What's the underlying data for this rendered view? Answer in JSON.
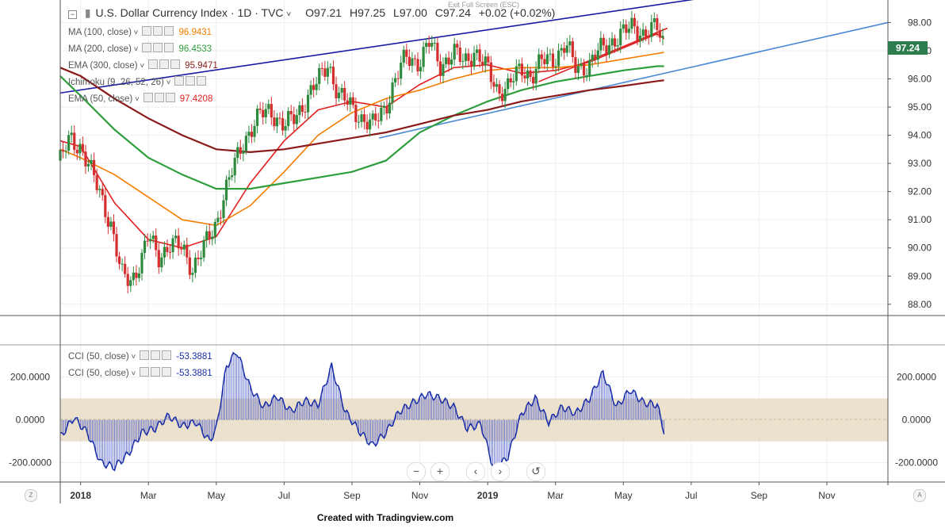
{
  "header": {
    "title": "U.S. Dollar Currency Index · 1D · TVC",
    "open": "O97.21",
    "high": "H97.25",
    "low": "L97.00",
    "close": "C97.24",
    "change": "+0.02 (+0.02%)",
    "exit_full_screen": "Exit Full Screen (ESC)"
  },
  "indicators": [
    {
      "name": "MA (100, close)",
      "value": "96.9431",
      "color": "#f57c00"
    },
    {
      "name": "MA (200, close)",
      "value": "96.4533",
      "color": "#2e9e3e"
    },
    {
      "name": "EMA (300, close)",
      "value": "95.9471",
      "color": "#8b1a1a"
    },
    {
      "name": "Ichimoku (9, 26, 52, 26)",
      "value": "",
      "color": "#2196f3"
    },
    {
      "name": "EMA (50, close)",
      "value": "97.4208",
      "color": "#e02020"
    }
  ],
  "cci_legend": [
    {
      "name": "CCI (50, close)",
      "value": "-53.3881",
      "color": "#1a2ea8"
    },
    {
      "name": "CCI (50, close)",
      "value": "-53.3881",
      "color": "#1a2ea8"
    }
  ],
  "price_badge": "97.24",
  "footer_text": "Created with Tradingview.com",
  "controls": {
    "zoom_out": "−",
    "zoom_in": "+",
    "prev": "‹",
    "next": "›",
    "reset": "↺"
  },
  "corners": {
    "left": "Z",
    "right": "A"
  },
  "chart_data": [
    {
      "type": "line",
      "title": "U.S. Dollar Currency Index",
      "x_ticks": [
        "2018",
        "Mar",
        "May",
        "Jul",
        "Sep",
        "Nov",
        "2019",
        "Mar",
        "May",
        "Jul",
        "Sep",
        "Nov"
      ],
      "y_ticks": [
        "98.00",
        "97.00",
        "96.00",
        "95.00",
        "94.00",
        "93.00",
        "92.00",
        "91.00",
        "90.00",
        "89.00",
        "88.00"
      ],
      "ylim": [
        87.6,
        98.8
      ],
      "x_unit": "months since Dec 2017",
      "xlim": [
        -0.6,
        23.8
      ],
      "current_price": 97.24,
      "series": [
        {
          "name": "Price",
          "color": "#555555",
          "x": [
            -0.6,
            -0.3,
            0,
            0.3,
            0.6,
            0.9,
            1.2,
            1.5,
            1.8,
            2,
            2.3,
            2.6,
            3,
            3.3,
            3.6,
            4,
            4.2,
            4.5,
            4.8,
            5,
            5.3,
            5.6,
            6,
            6.3,
            6.6,
            7,
            7.3,
            7.6,
            8,
            8.3,
            8.6,
            9,
            9.3,
            9.6,
            10,
            10.3,
            10.6,
            11,
            11.3,
            11.6,
            12,
            12.3,
            12.6,
            13,
            13.3,
            13.6,
            14,
            14.3,
            14.6,
            15,
            15.3,
            15.6,
            16,
            16.3,
            16.6,
            17,
            17.2
          ],
          "values": [
            93.1,
            93.9,
            93.6,
            92.7,
            91.9,
            90.8,
            89.0,
            88.9,
            89.6,
            90.4,
            89.7,
            90.1,
            90.0,
            89.3,
            89.9,
            90.9,
            91.8,
            92.8,
            93.8,
            94.2,
            94.7,
            94.9,
            94.3,
            94.6,
            95.2,
            95.9,
            96.6,
            95.4,
            95.0,
            94.6,
            94.3,
            95.1,
            96.0,
            96.8,
            96.6,
            97.3,
            96.5,
            96.9,
            96.6,
            97.0,
            96.3,
            95.6,
            95.7,
            96.4,
            96.1,
            96.6,
            96.8,
            97.2,
            96.4,
            96.5,
            97.0,
            97.3,
            97.6,
            97.9,
            97.6,
            97.8,
            97.24
          ]
        },
        {
          "name": "EMA (50, close)",
          "color": "#e02020",
          "x": [
            -0.6,
            0,
            1,
            2,
            3,
            4,
            5,
            6,
            7,
            8,
            9,
            10,
            11,
            12,
            13,
            14,
            15,
            16,
            17,
            17.2
          ],
          "values": [
            93.8,
            93.6,
            91.6,
            90.3,
            90.0,
            90.4,
            92.3,
            93.8,
            94.9,
            95.2,
            95.0,
            95.8,
            96.4,
            96.5,
            96.2,
            96.3,
            96.6,
            97.1,
            97.6,
            97.42
          ]
        },
        {
          "name": "MA (100, close)",
          "color": "#f57c00",
          "x": [
            -0.6,
            0,
            1,
            2,
            3,
            4,
            5,
            6,
            7,
            8,
            9,
            10,
            11,
            12,
            13,
            14,
            15,
            16,
            17,
            17.2
          ],
          "values": [
            93.5,
            93.2,
            92.6,
            91.8,
            91.0,
            90.8,
            91.5,
            92.7,
            94.0,
            94.8,
            95.3,
            95.6,
            96.0,
            96.3,
            96.4,
            96.4,
            96.5,
            96.7,
            96.9,
            96.94
          ]
        },
        {
          "name": "MA (200, close)",
          "color": "#2e9e3e",
          "x": [
            -0.6,
            0,
            1,
            2,
            3,
            4,
            5,
            6,
            7,
            8,
            9,
            10,
            11,
            12,
            13,
            14,
            15,
            16,
            17,
            17.2
          ],
          "values": [
            96.1,
            95.4,
            94.2,
            93.2,
            92.6,
            92.1,
            92.1,
            92.3,
            92.5,
            92.7,
            93.1,
            94.1,
            94.7,
            95.2,
            95.6,
            95.9,
            96.1,
            96.3,
            96.45,
            96.45
          ]
        },
        {
          "name": "EMA (300, close)",
          "color": "#8b1a1a",
          "x": [
            -0.6,
            0,
            1,
            2,
            3,
            4,
            5,
            6,
            7,
            8,
            9,
            10,
            11,
            12,
            13,
            14,
            15,
            16,
            17,
            17.2
          ],
          "values": [
            96.4,
            96.1,
            95.3,
            94.6,
            94.0,
            93.5,
            93.4,
            93.5,
            93.7,
            93.9,
            94.1,
            94.4,
            94.7,
            94.9,
            95.2,
            95.4,
            95.6,
            95.75,
            95.92,
            95.95
          ]
        }
      ],
      "trendlines": [
        {
          "color": "#1a1aa8",
          "x": [
            -0.6,
            20.2
          ],
          "values": [
            95.5,
            99.2
          ]
        },
        {
          "color": "#4a88d6",
          "x": [
            8.8,
            23.8
          ],
          "values": [
            93.9,
            98.0
          ]
        },
        {
          "color": "#e02020",
          "x": [
            13.5,
            17.3
          ],
          "values": [
            95.9,
            97.8
          ]
        }
      ]
    },
    {
      "type": "area",
      "title": "CCI (50, close)",
      "y_ticks": [
        "200.0000",
        "0.0000",
        "-200.0000"
      ],
      "ylim": [
        -290,
        350
      ],
      "band": [
        -100,
        100
      ],
      "current_value": -53.3881,
      "series": [
        {
          "name": "CCI (50, close)",
          "color": "#1a2ea8",
          "x": [
            -0.6,
            -0.2,
            0.2,
            0.6,
            1.0,
            1.4,
            1.8,
            2.2,
            2.6,
            3.0,
            3.4,
            3.8,
            4.0,
            4.3,
            4.6,
            5.0,
            5.4,
            5.8,
            6.2,
            6.6,
            7.0,
            7.4,
            7.8,
            8.2,
            8.6,
            9.0,
            9.4,
            9.8,
            10.2,
            10.6,
            11.0,
            11.4,
            11.8,
            12.2,
            12.6,
            13.0,
            13.4,
            13.8,
            14.2,
            14.6,
            15.0,
            15.4,
            15.8,
            16.2,
            16.6,
            17.0,
            17.2
          ],
          "values": [
            -80,
            10,
            -60,
            -200,
            -220,
            -160,
            -60,
            -40,
            20,
            -30,
            -10,
            -100,
            -40,
            250,
            320,
            150,
            60,
            110,
            40,
            90,
            70,
            250,
            40,
            -50,
            -120,
            -60,
            40,
            80,
            120,
            100,
            60,
            -40,
            -20,
            -240,
            -170,
            30,
            100,
            -10,
            60,
            30,
            100,
            220,
            60,
            140,
            80,
            70,
            -53.39
          ]
        }
      ]
    }
  ]
}
